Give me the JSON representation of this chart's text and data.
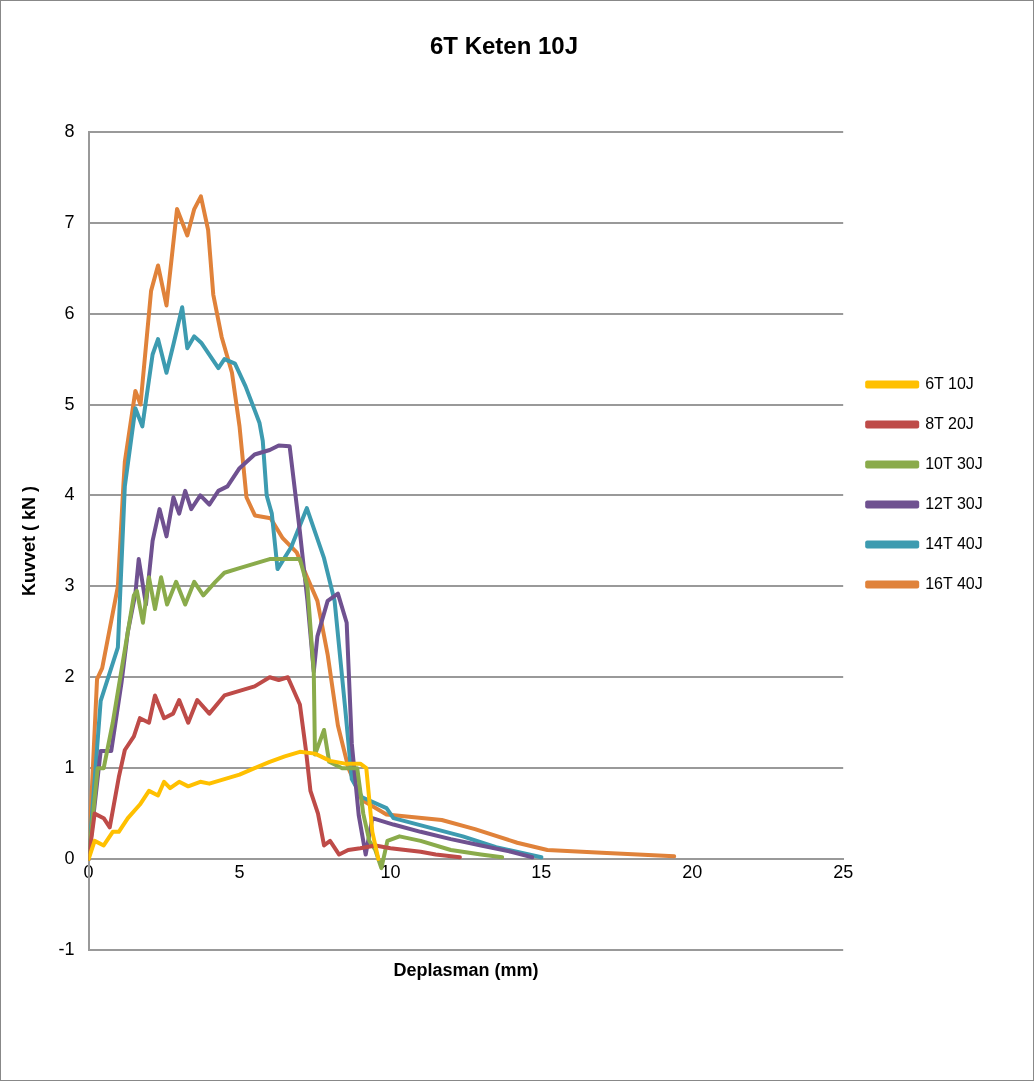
{
  "chart_data": {
    "type": "line",
    "title": "6T Keten 10J",
    "xlabel": "Deplasman (mm)",
    "ylabel": "Kuvvet ( kN )",
    "xlim": [
      0,
      25
    ],
    "xticks": [
      0,
      5,
      10,
      15,
      20,
      25
    ],
    "ylim": [
      -1,
      8
    ],
    "yticks": [
      -1,
      0,
      1,
      2,
      3,
      4,
      5,
      6,
      7,
      8
    ],
    "grid": "y",
    "legend": "right",
    "marker": "none",
    "line_style": "solid",
    "series": [
      {
        "name": "6T 10J",
        "color": "#ffc000",
        "x": [
          0,
          0.2,
          0.5,
          0.8,
          1,
          1.3,
          1.7,
          2,
          2.3,
          2.5,
          2.7,
          3,
          3.3,
          3.7,
          4,
          4.5,
          5,
          5.5,
          6,
          6.5,
          7,
          7.5,
          8,
          8.5,
          9,
          9.2,
          9.4,
          9.6
        ],
        "values": [
          0,
          0.2,
          0.15,
          0.3,
          0.3,
          0.45,
          0.6,
          0.75,
          0.7,
          0.85,
          0.78,
          0.85,
          0.8,
          0.85,
          0.83,
          0.88,
          0.93,
          1.0,
          1.07,
          1.13,
          1.18,
          1.16,
          1.08,
          1.05,
          1.05,
          1.0,
          0.3,
          0.0
        ]
      },
      {
        "name": "8T 20J",
        "color": "#be4b48",
        "x": [
          0,
          0.2,
          0.5,
          0.7,
          1,
          1.2,
          1.5,
          1.7,
          2,
          2.2,
          2.5,
          2.8,
          3,
          3.3,
          3.6,
          4,
          4.5,
          5,
          5.5,
          6,
          6.3,
          6.6,
          7.0,
          7.2,
          7.35,
          7.6,
          7.8,
          8.0,
          8.3,
          8.6,
          9,
          9.5,
          10,
          11,
          11.5,
          12.3
        ],
        "values": [
          0,
          0.5,
          0.45,
          0.35,
          0.9,
          1.2,
          1.35,
          1.55,
          1.5,
          1.8,
          1.55,
          1.6,
          1.75,
          1.5,
          1.75,
          1.6,
          1.8,
          1.85,
          1.9,
          2.0,
          1.97,
          2.0,
          1.7,
          1.2,
          0.75,
          0.5,
          0.15,
          0.2,
          0.05,
          0.1,
          0.12,
          0.15,
          0.12,
          0.08,
          0.05,
          0.02
        ]
      },
      {
        "name": "10T 30J",
        "color": "#8aab4b",
        "x": [
          0,
          0.3,
          0.5,
          0.8,
          1.0,
          1.2,
          1.5,
          1.6,
          1.8,
          2.0,
          2.2,
          2.4,
          2.6,
          2.9,
          3.2,
          3.5,
          3.8,
          4.2,
          4.5,
          5,
          5.5,
          6,
          6.5,
          7.0,
          7.25,
          7.46,
          7.5,
          7.8,
          7.97,
          8.4,
          8.9,
          9.1,
          9.3,
          9.5,
          9.7,
          9.9,
          10.3,
          11,
          12,
          13,
          13.7
        ],
        "values": [
          0,
          1.0,
          1.0,
          1.5,
          1.9,
          2.3,
          2.9,
          2.95,
          2.6,
          3.1,
          2.75,
          3.1,
          2.8,
          3.05,
          2.8,
          3.05,
          2.9,
          3.05,
          3.15,
          3.2,
          3.25,
          3.3,
          3.3,
          3.3,
          3.0,
          2.06,
          1.15,
          1.42,
          1.07,
          1.0,
          1.0,
          0.5,
          0.2,
          0.1,
          -0.1,
          0.2,
          0.25,
          0.2,
          0.1,
          0.05,
          0.02
        ]
      },
      {
        "name": "12T 30J",
        "color": "#6f5190",
        "x": [
          0,
          0.4,
          0.75,
          1.09,
          1.3,
          1.55,
          1.66,
          1.9,
          2.12,
          2.35,
          2.58,
          2.81,
          3.0,
          3.2,
          3.4,
          3.7,
          4.0,
          4.3,
          4.6,
          5,
          5.5,
          6,
          6.3,
          6.66,
          7.0,
          7.25,
          7.46,
          7.58,
          7.92,
          8.26,
          8.55,
          8.72,
          8.95,
          9.18,
          9.4,
          10.1,
          11,
          12,
          13,
          14,
          14.7
        ],
        "values": [
          0,
          1.19,
          1.19,
          1.94,
          2.5,
          2.92,
          3.3,
          2.8,
          3.5,
          3.85,
          3.55,
          3.98,
          3.8,
          4.05,
          3.85,
          4.0,
          3.9,
          4.05,
          4.1,
          4.3,
          4.45,
          4.5,
          4.55,
          4.54,
          3.6,
          2.84,
          2.06,
          2.45,
          2.84,
          2.92,
          2.6,
          1.27,
          0.48,
          0.05,
          0.45,
          0.38,
          0.3,
          0.22,
          0.15,
          0.08,
          0.02
        ]
      },
      {
        "name": "14T 40J",
        "color": "#3d9bb0",
        "x": [
          0,
          0.4,
          0.97,
          1.2,
          1.55,
          1.78,
          2.12,
          2.3,
          2.58,
          2.81,
          3.1,
          3.27,
          3.5,
          3.73,
          4.3,
          4.5,
          4.85,
          5.2,
          5.66,
          5.77,
          5.9,
          6.07,
          6.26,
          6.71,
          7.23,
          7.8,
          8.15,
          8.5,
          8.72,
          9.06,
          9.87,
          10.1,
          12.4,
          13.5,
          15.0
        ],
        "values": [
          0,
          1.74,
          2.33,
          4.1,
          4.96,
          4.76,
          5.55,
          5.72,
          5.35,
          5.66,
          6.07,
          5.62,
          5.75,
          5.68,
          5.4,
          5.5,
          5.45,
          5.2,
          4.8,
          4.6,
          4.0,
          3.8,
          3.19,
          3.43,
          3.86,
          3.31,
          2.84,
          1.66,
          0.88,
          0.68,
          0.56,
          0.45,
          0.25,
          0.13,
          0.02
        ]
      },
      {
        "name": "16T 40J",
        "color": "#e0823a",
        "x": [
          0,
          0.28,
          0.45,
          0.97,
          1.15,
          1.2,
          1.55,
          1.72,
          2.07,
          2.3,
          2.58,
          2.93,
          3.27,
          3.5,
          3.72,
          3.96,
          4.13,
          4.41,
          4.75,
          5.0,
          5.23,
          5.51,
          6.03,
          6.43,
          6.9,
          7.24,
          7.58,
          7.92,
          8.26,
          8.61,
          9.06,
          9.87,
          11.7,
          12.8,
          14.2,
          15.2,
          17,
          19.4
        ],
        "values": [
          0,
          1.98,
          2.1,
          3.0,
          4.1,
          4.37,
          5.15,
          5.0,
          6.25,
          6.53,
          6.09,
          7.15,
          6.86,
          7.15,
          7.29,
          6.92,
          6.21,
          5.74,
          5.35,
          4.76,
          3.98,
          3.78,
          3.75,
          3.53,
          3.37,
          3.1,
          2.84,
          2.25,
          1.47,
          1.0,
          0.65,
          0.49,
          0.43,
          0.33,
          0.18,
          0.1,
          0.07,
          0.03
        ]
      }
    ]
  }
}
